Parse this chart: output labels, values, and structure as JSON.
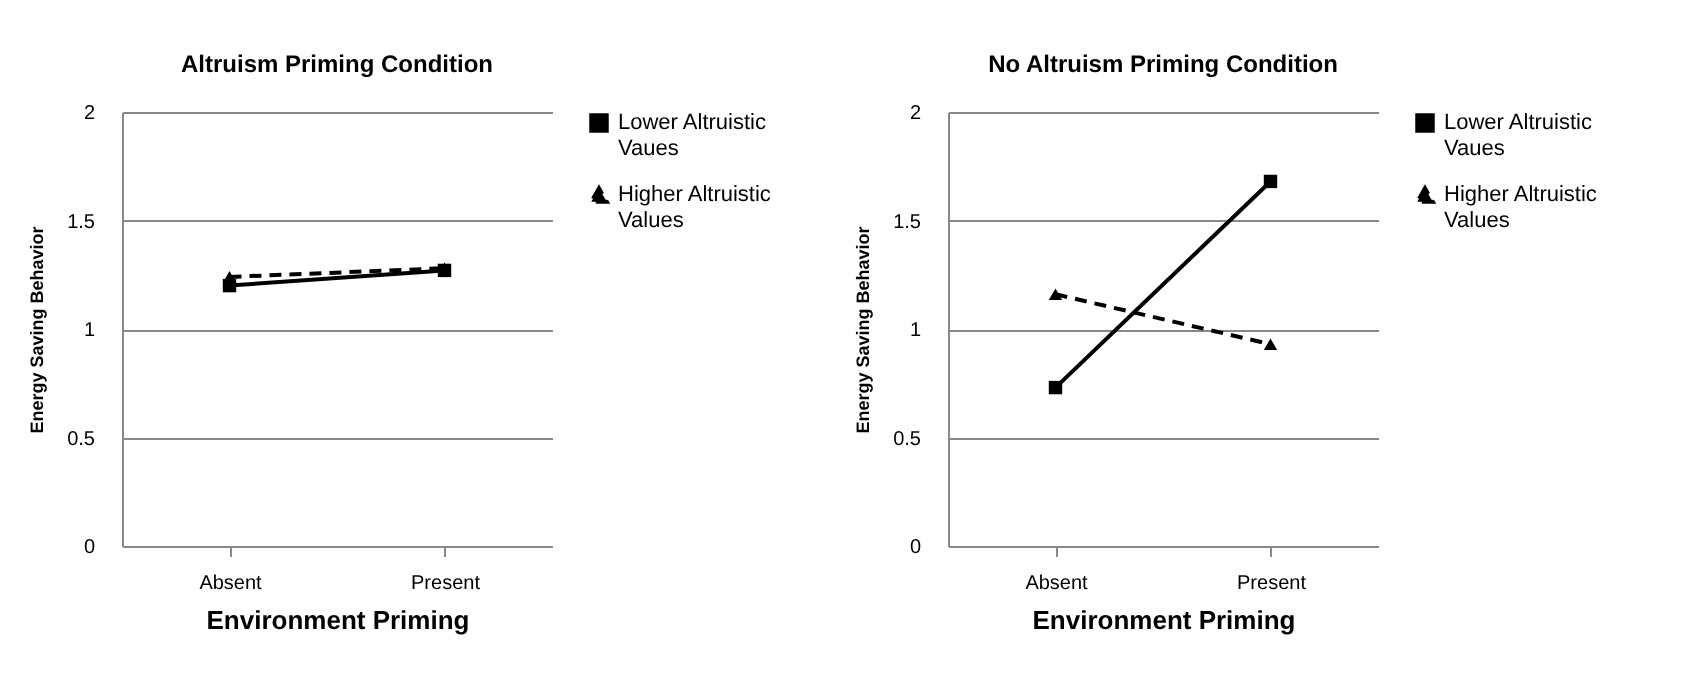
{
  "chart_data": [
    {
      "type": "line",
      "title": "Altruism Priming Condition",
      "xlabel": "Environment Priming",
      "ylabel": "Energy Saving  Behavior",
      "categories": [
        "Absent",
        "Present"
      ],
      "ylim": [
        0,
        2
      ],
      "yticks": [
        0,
        0.5,
        1,
        1.5,
        2
      ],
      "grid": "y",
      "legend": "right",
      "series": [
        {
          "name": "Lower Altruistic Vaues",
          "color": "#000000",
          "marker": "square",
          "line_style": "solid",
          "values": [
            1.2,
            1.27
          ]
        },
        {
          "name": "Higher Altruistic Values",
          "color": "#000000",
          "marker": "triangle",
          "line_style": "dashed",
          "values": [
            1.24,
            1.28
          ]
        }
      ]
    },
    {
      "type": "line",
      "title": "No Altruism Priming Condition",
      "xlabel": "Environment Priming",
      "ylabel": "Energy Saving  Behavior",
      "categories": [
        "Absent",
        "Present"
      ],
      "ylim": [
        0,
        2
      ],
      "yticks": [
        0,
        0.5,
        1,
        1.5,
        2
      ],
      "grid": "y",
      "legend": "right",
      "series": [
        {
          "name": "Lower Altruistic Vaues",
          "color": "#000000",
          "marker": "square",
          "line_style": "solid",
          "values": [
            0.73,
            1.68
          ]
        },
        {
          "name": "Higher Altruistic Values",
          "color": "#000000",
          "marker": "triangle",
          "line_style": "dashed",
          "values": [
            1.16,
            0.93
          ]
        }
      ]
    }
  ]
}
